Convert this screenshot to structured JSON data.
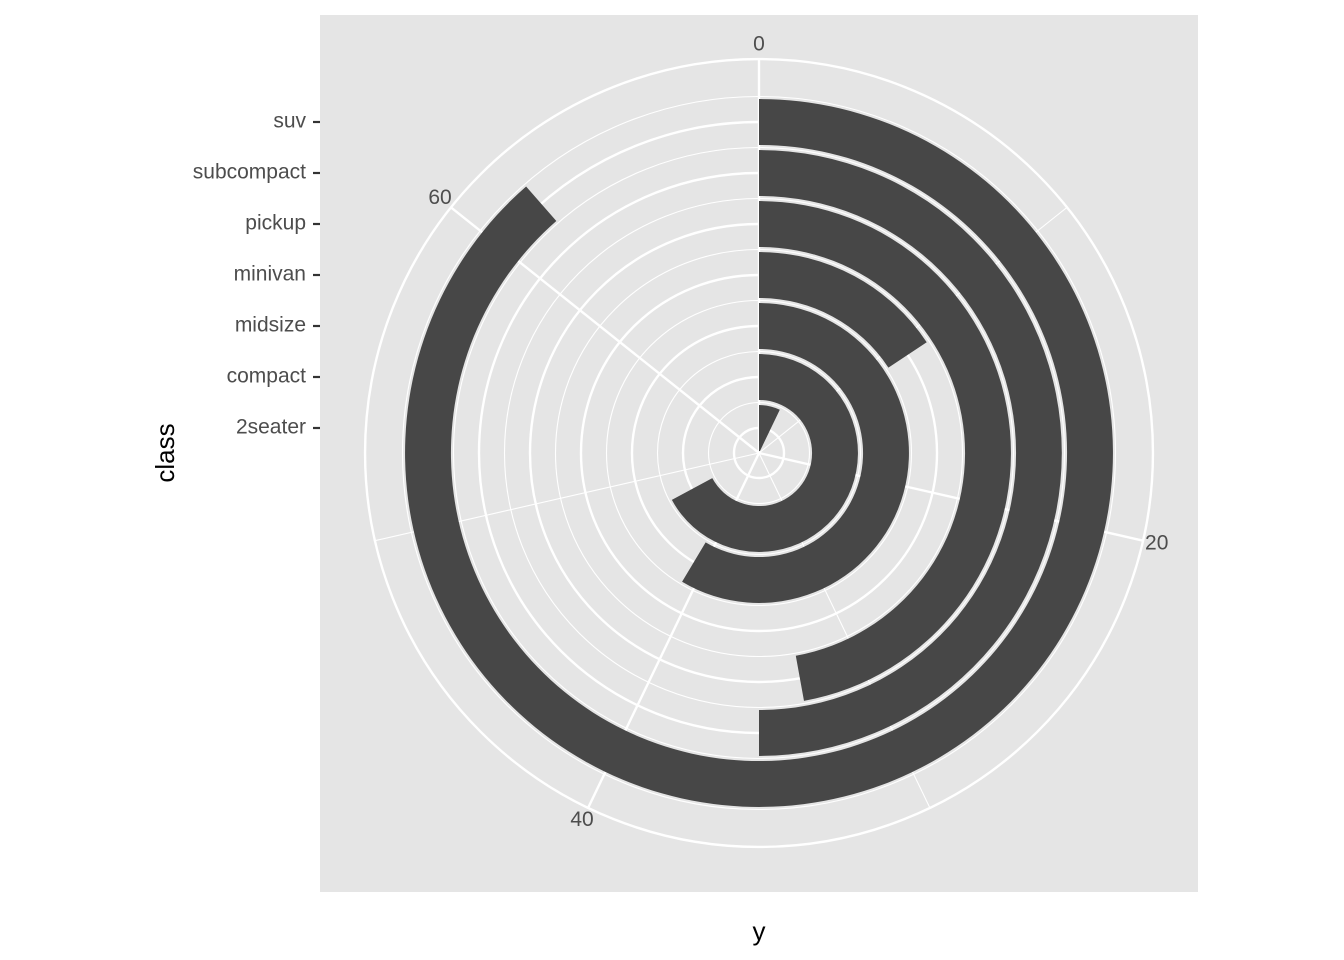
{
  "chart_data": {
    "type": "bar",
    "coord": "polar",
    "theta": "y",
    "categories": [
      "2seater",
      "compact",
      "midsize",
      "minivan",
      "pickup",
      "subcompact",
      "suv"
    ],
    "values": [
      5,
      47,
      41,
      11,
      33,
      35,
      62
    ],
    "xlabel": "class",
    "ylabel": "y",
    "ylim": [
      0,
      70
    ],
    "y_ticks": [
      0,
      20,
      40,
      60
    ],
    "grid": true,
    "colors": {
      "panel": "#E5E5E5",
      "grid": "#FFFFFF",
      "bar": "#474747",
      "tick_text": "#4D4D4D",
      "tick_mark": "#333333",
      "title": "#000000"
    }
  }
}
